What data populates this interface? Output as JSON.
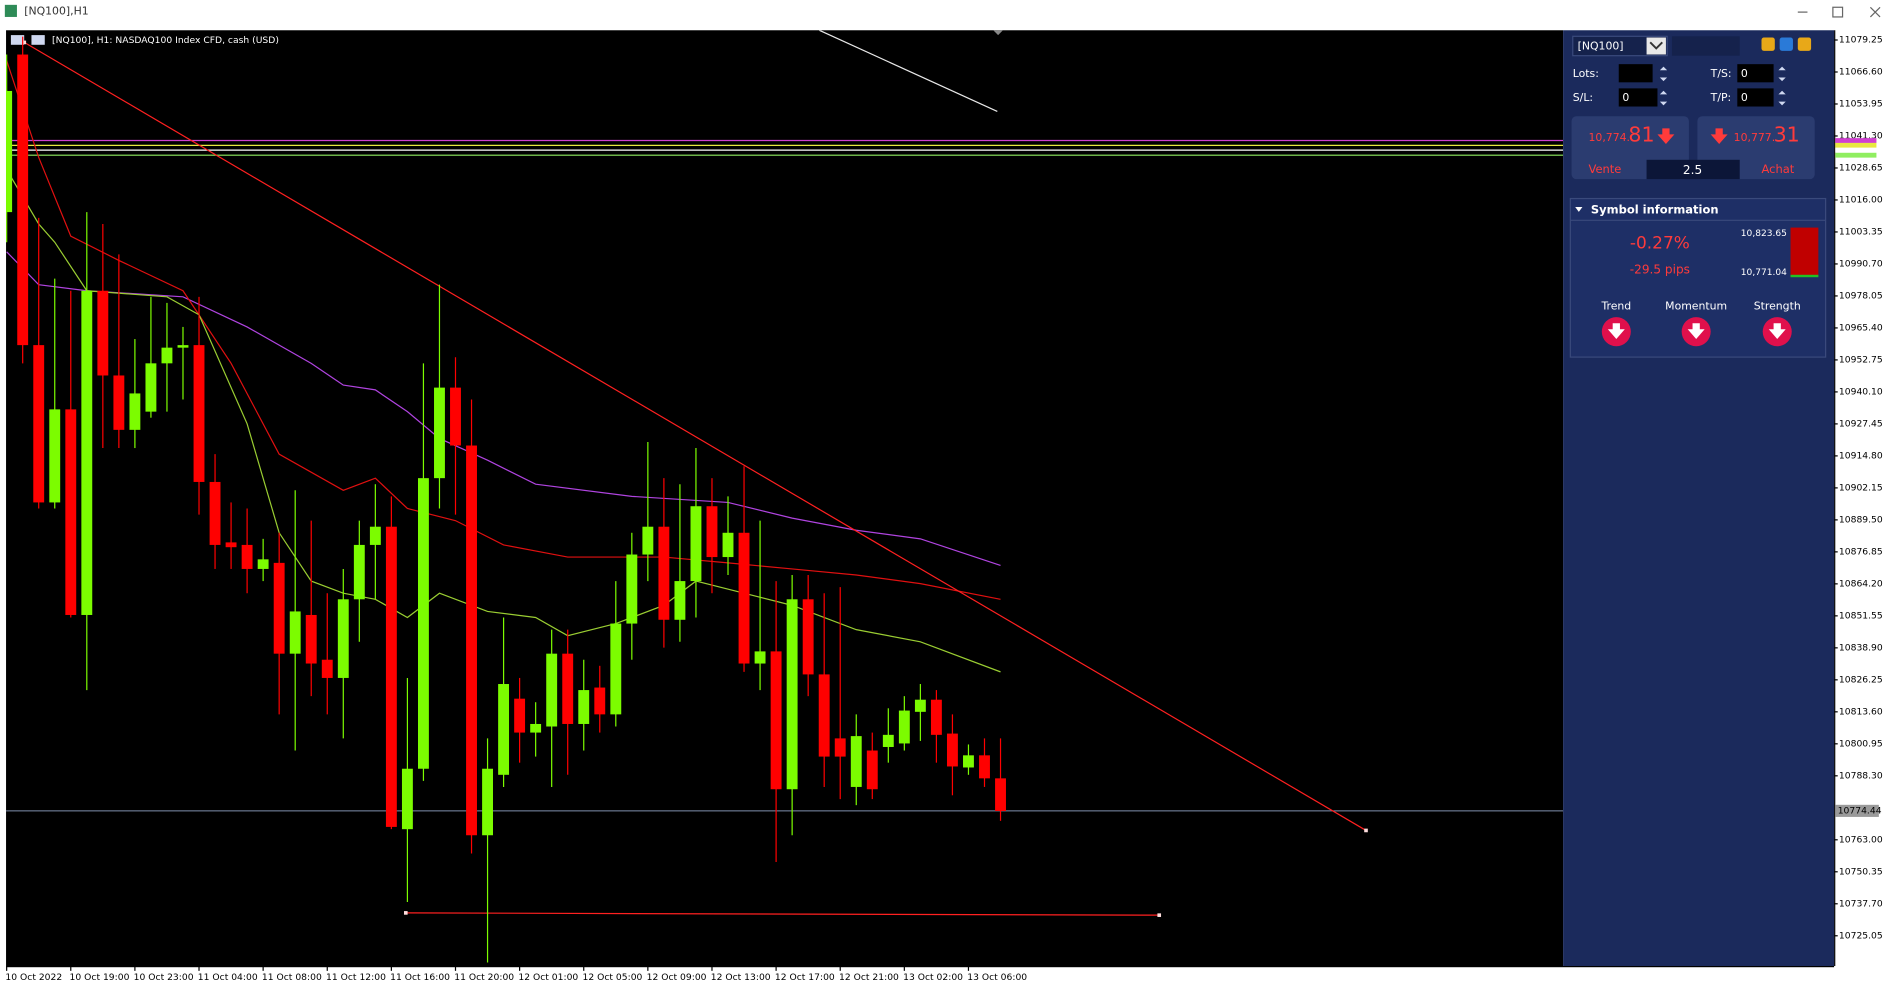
{
  "window": {
    "title": "[NQ100],H1"
  },
  "chart_data": {
    "type": "candlestick",
    "title": "[NQ100], H1:  NASDAQ100 Index CFD, cash (USD)",
    "categories": [
      "10 Oct 2022",
      null,
      null,
      null,
      "10 Oct 19:00",
      null,
      null,
      null,
      "10 Oct 23:00",
      null,
      null,
      null,
      "11 Oct 04:00",
      null,
      null,
      null,
      "11 Oct 08:00",
      null,
      null,
      null,
      "11 Oct 12:00",
      null,
      null,
      null,
      "11 Oct 16:00",
      null,
      null,
      null,
      "11 Oct 20:00",
      null,
      null,
      null,
      "12 Oct 01:00",
      null,
      null,
      null,
      "12 Oct 05:00",
      null,
      null,
      null,
      "12 Oct 09:00",
      null,
      null,
      null,
      "12 Oct 13:00",
      null,
      null,
      null,
      "12 Oct 17:00",
      null,
      null,
      null,
      "12 Oct 21:00",
      null,
      null,
      null,
      "13 Oct 02:00",
      null,
      null,
      null,
      "13 Oct 06:00",
      null,
      null
    ],
    "open": [
      11011.2,
      11073.5,
      10958.6,
      10896.4,
      10933.2,
      10851.9,
      10980.1,
      10946.6,
      10925.1,
      10932.3,
      10951.4,
      10957.6,
      10958.6,
      10904.5,
      10880.6,
      10879.6,
      10870.1,
      10872.5,
      10836.6,
      10851.9,
      10834.2,
      10827.0,
      10858.1,
      10879.6,
      10886.8,
      10767.2,
      10791.1,
      10906.0,
      10941.8,
      10918.9,
      10764.8,
      10788.7,
      10818.8,
      10805.4,
      10807.8,
      10836.6,
      10808.8,
      10823.2,
      10812.6,
      10848.5,
      10875.8,
      10886.8,
      10850.0,
      10865.3,
      10894.9,
      10874.8,
      10884.4,
      10832.7,
      10837.5,
      10783.0,
      10858.1,
      10828.4,
      10803.1,
      10783.9,
      10798.3,
      10799.7,
      10801.1,
      10813.6,
      10818.4,
      10805.0,
      10791.6,
      10796.4,
      10787.3
    ],
    "high": [
      11073.5,
      11080.6,
      11008.9,
      10984.9,
      10980.1,
      11011.2,
      11006.5,
      10994.5,
      10961.0,
      10977.7,
      10975.3,
      10965.8,
      10977.7,
      10915.5,
      10896.4,
      10894.0,
      10882.0,
      10884.4,
      10901.2,
      10889.2,
      10860.5,
      10870.1,
      10889.2,
      10903.6,
      10898.8,
      10827.0,
      10951.4,
      10982.5,
      10953.8,
      10937.1,
      10803.1,
      10850.9,
      10827.0,
      10817.4,
      10846.1,
      10846.1,
      10834.2,
      10831.8,
      10865.3,
      10884.4,
      10920.3,
      10906.0,
      10903.6,
      10917.9,
      10906.0,
      10898.8,
      10910.7,
      10889.2,
      10865.3,
      10867.7,
      10867.7,
      10860.5,
      10862.9,
      10812.6,
      10805.4,
      10815.0,
      10819.8,
      10824.6,
      10822.2,
      10812.6,
      10800.7,
      10803.1,
      10803.1
    ],
    "low": [
      10999.3,
      10951.4,
      10894.0,
      10894.0,
      10850.9,
      10822.2,
      10917.9,
      10917.9,
      10917.9,
      10929.9,
      10932.3,
      10937.1,
      10891.6,
      10870.1,
      10870.1,
      10860.5,
      10865.3,
      10812.6,
      10798.3,
      10819.8,
      10812.6,
      10803.1,
      10841.3,
      10858.1,
      10767.2,
      10738.4,
      10786.3,
      10894.0,
      10891.6,
      10757.6,
      10714.5,
      10783.9,
      10793.5,
      10795.9,
      10783.9,
      10788.7,
      10798.3,
      10805.4,
      10807.8,
      10834.2,
      10865.3,
      10839.0,
      10841.3,
      10850.9,
      10860.5,
      10867.7,
      10829.4,
      10822.2,
      10754.2,
      10764.8,
      10819.8,
      10783.9,
      10779.1,
      10776.7,
      10779.1,
      10793.5,
      10798.3,
      10802.1,
      10793.5,
      10780.6,
      10788.7,
      10783.9,
      10770.5
    ],
    "close": [
      11059.1,
      10958.6,
      10896.4,
      10933.2,
      10851.9,
      10980.1,
      10946.6,
      10925.1,
      10939.5,
      10951.4,
      10957.6,
      10958.6,
      10904.5,
      10879.6,
      10878.7,
      10870.1,
      10873.9,
      10836.6,
      10853.3,
      10832.7,
      10827.0,
      10858.1,
      10879.6,
      10886.8,
      10768.1,
      10791.1,
      10906.0,
      10941.8,
      10918.9,
      10764.8,
      10791.1,
      10824.6,
      10805.4,
      10808.8,
      10836.6,
      10808.8,
      10822.2,
      10812.6,
      10848.5,
      10875.8,
      10886.8,
      10850.0,
      10865.3,
      10894.9,
      10874.8,
      10884.4,
      10832.7,
      10837.5,
      10783.0,
      10858.1,
      10828.4,
      10795.9,
      10795.9,
      10804.0,
      10783.0,
      10804.5,
      10814.1,
      10818.4,
      10804.5,
      10792.0,
      10796.4,
      10787.3,
      10774.4
    ],
    "up_color": "#7cfc00",
    "down_color": "#ff0000",
    "ylim": [
      10713.1,
      11083.1
    ],
    "yticks": [
      {
        "value": 11079.25,
        "label": "11079.25"
      },
      {
        "value": 11066.6,
        "label": "11066.60"
      },
      {
        "value": 11053.95,
        "label": "11053.95"
      },
      {
        "value": 11041.3,
        "label": "11041.30"
      },
      {
        "value": 11028.65,
        "label": "11028.65"
      },
      {
        "value": 11016,
        "label": "11016.00"
      },
      {
        "value": 11003.35,
        "label": "11003.35"
      },
      {
        "value": 10990.7,
        "label": "10990.70"
      },
      {
        "value": 10978.05,
        "label": "10978.05"
      },
      {
        "value": 10965.4,
        "label": "10965.40"
      },
      {
        "value": 10952.75,
        "label": "10952.75"
      },
      {
        "value": 10940.1,
        "label": "10940.10"
      },
      {
        "value": 10927.45,
        "label": "10927.45"
      },
      {
        "value": 10914.8,
        "label": "10914.80"
      },
      {
        "value": 10902.15,
        "label": "10902.15"
      },
      {
        "value": 10889.5,
        "label": "10889.50"
      },
      {
        "value": 10876.85,
        "label": "10876.85"
      },
      {
        "value": 10864.2,
        "label": "10864.20"
      },
      {
        "value": 10851.55,
        "label": "10851.55"
      },
      {
        "value": 10838.9,
        "label": "10838.90"
      },
      {
        "value": 10826.25,
        "label": "10826.25"
      },
      {
        "value": 10813.6,
        "label": "10813.60"
      },
      {
        "value": 10800.95,
        "label": "10800.95"
      },
      {
        "value": 10788.3,
        "label": "10788.30"
      },
      {
        "value": 10763,
        "label": "10763.00"
      },
      {
        "value": 10750.35,
        "label": "10750.35"
      },
      {
        "value": 10737.7,
        "label": "10737.70"
      },
      {
        "value": 10725.05,
        "label": "10725.05"
      }
    ],
    "current_price": 10774.44,
    "current_price_color": "#7f8fae",
    "moving_averages": [
      {
        "color": "#b044e0",
        "x": [
          0,
          2,
          5,
          11,
          15,
          19,
          21,
          23,
          25,
          27,
          30,
          33,
          39,
          45,
          49,
          53,
          57,
          62
        ],
        "values": [
          10995.5,
          10982.5,
          10980.1,
          10977.7,
          10965.8,
          10951.4,
          10942.8,
          10940.9,
          10932.3,
          10921.7,
          10913.1,
          10903.6,
          10898.8,
          10896.4,
          10890.2,
          10885.4,
          10882.0,
          10871.5
        ]
      },
      {
        "color": "#e01010",
        "x": [
          0,
          2,
          4,
          7,
          11,
          14,
          17,
          21,
          23,
          25,
          28,
          31,
          35,
          41,
          45,
          49,
          53,
          57,
          62
        ],
        "values": [
          11071.1,
          11032.8,
          11001.7,
          10992.1,
          10980.1,
          10951.4,
          10915.5,
          10901.2,
          10906.0,
          10894.0,
          10889.2,
          10879.6,
          10874.8,
          10874.8,
          10872.5,
          10870.1,
          10867.7,
          10864.3,
          10858.1
        ]
      },
      {
        "color": "#9acd32",
        "x": [
          0,
          2,
          3,
          5,
          10,
          12,
          15,
          17,
          19,
          21,
          23,
          25,
          27,
          30,
          33,
          35,
          38,
          41,
          43,
          46,
          49,
          53,
          57,
          62
        ],
        "values": [
          11028.0,
          11006.5,
          10999.3,
          10980.1,
          10977.7,
          10970.6,
          10927.5,
          10884.4,
          10865.3,
          10860.5,
          10858.1,
          10850.9,
          10860.5,
          10853.3,
          10850.9,
          10843.7,
          10848.5,
          10855.7,
          10865.3,
          10860.5,
          10855.7,
          10846.1,
          10841.3,
          10829.4
        ]
      }
    ],
    "drawings": [
      {
        "color": "#ff2020",
        "x": [
          1.1,
          84.8
        ],
        "values": [
          11078.3,
          10766.7
        ]
      },
      {
        "color": "#ff2020",
        "x": [
          24.9,
          71.9
        ],
        "values": [
          10734.1,
          10733.2
        ]
      },
      {
        "color": "#e8e8e8",
        "x": [
          50.7,
          61.8
        ],
        "values": [
          11083.1,
          11051.0
        ]
      }
    ],
    "levels": [
      {
        "value": 11039.5,
        "color": "#d040d0"
      },
      {
        "value": 11037.6,
        "color": "#e8e840"
      },
      {
        "value": 11035.7,
        "color": "#ffffff"
      },
      {
        "value": 11033.7,
        "color": "#90ee60"
      }
    ]
  },
  "panel": {
    "symbol": "[NQ100]",
    "lots_label": "Lots:",
    "ts_label": "T/S:",
    "ts_value": "0",
    "sl_label": "S/L:",
    "sl_value": "0",
    "tp_label": "T/P:",
    "tp_value": "0",
    "sell": {
      "price_main": "10,774.",
      "price_pips": "81",
      "label": "Vente"
    },
    "buy": {
      "price_main": "10,777.",
      "price_pips": "31",
      "label": "Achat"
    },
    "spread": "2.5",
    "info": {
      "title": "Symbol information",
      "change": "-0.27%",
      "pips": "-29.5 pips",
      "high": "10,823.65",
      "low": "10,771.04",
      "indicators": [
        "Trend",
        "Momentum",
        "Strength"
      ]
    }
  }
}
